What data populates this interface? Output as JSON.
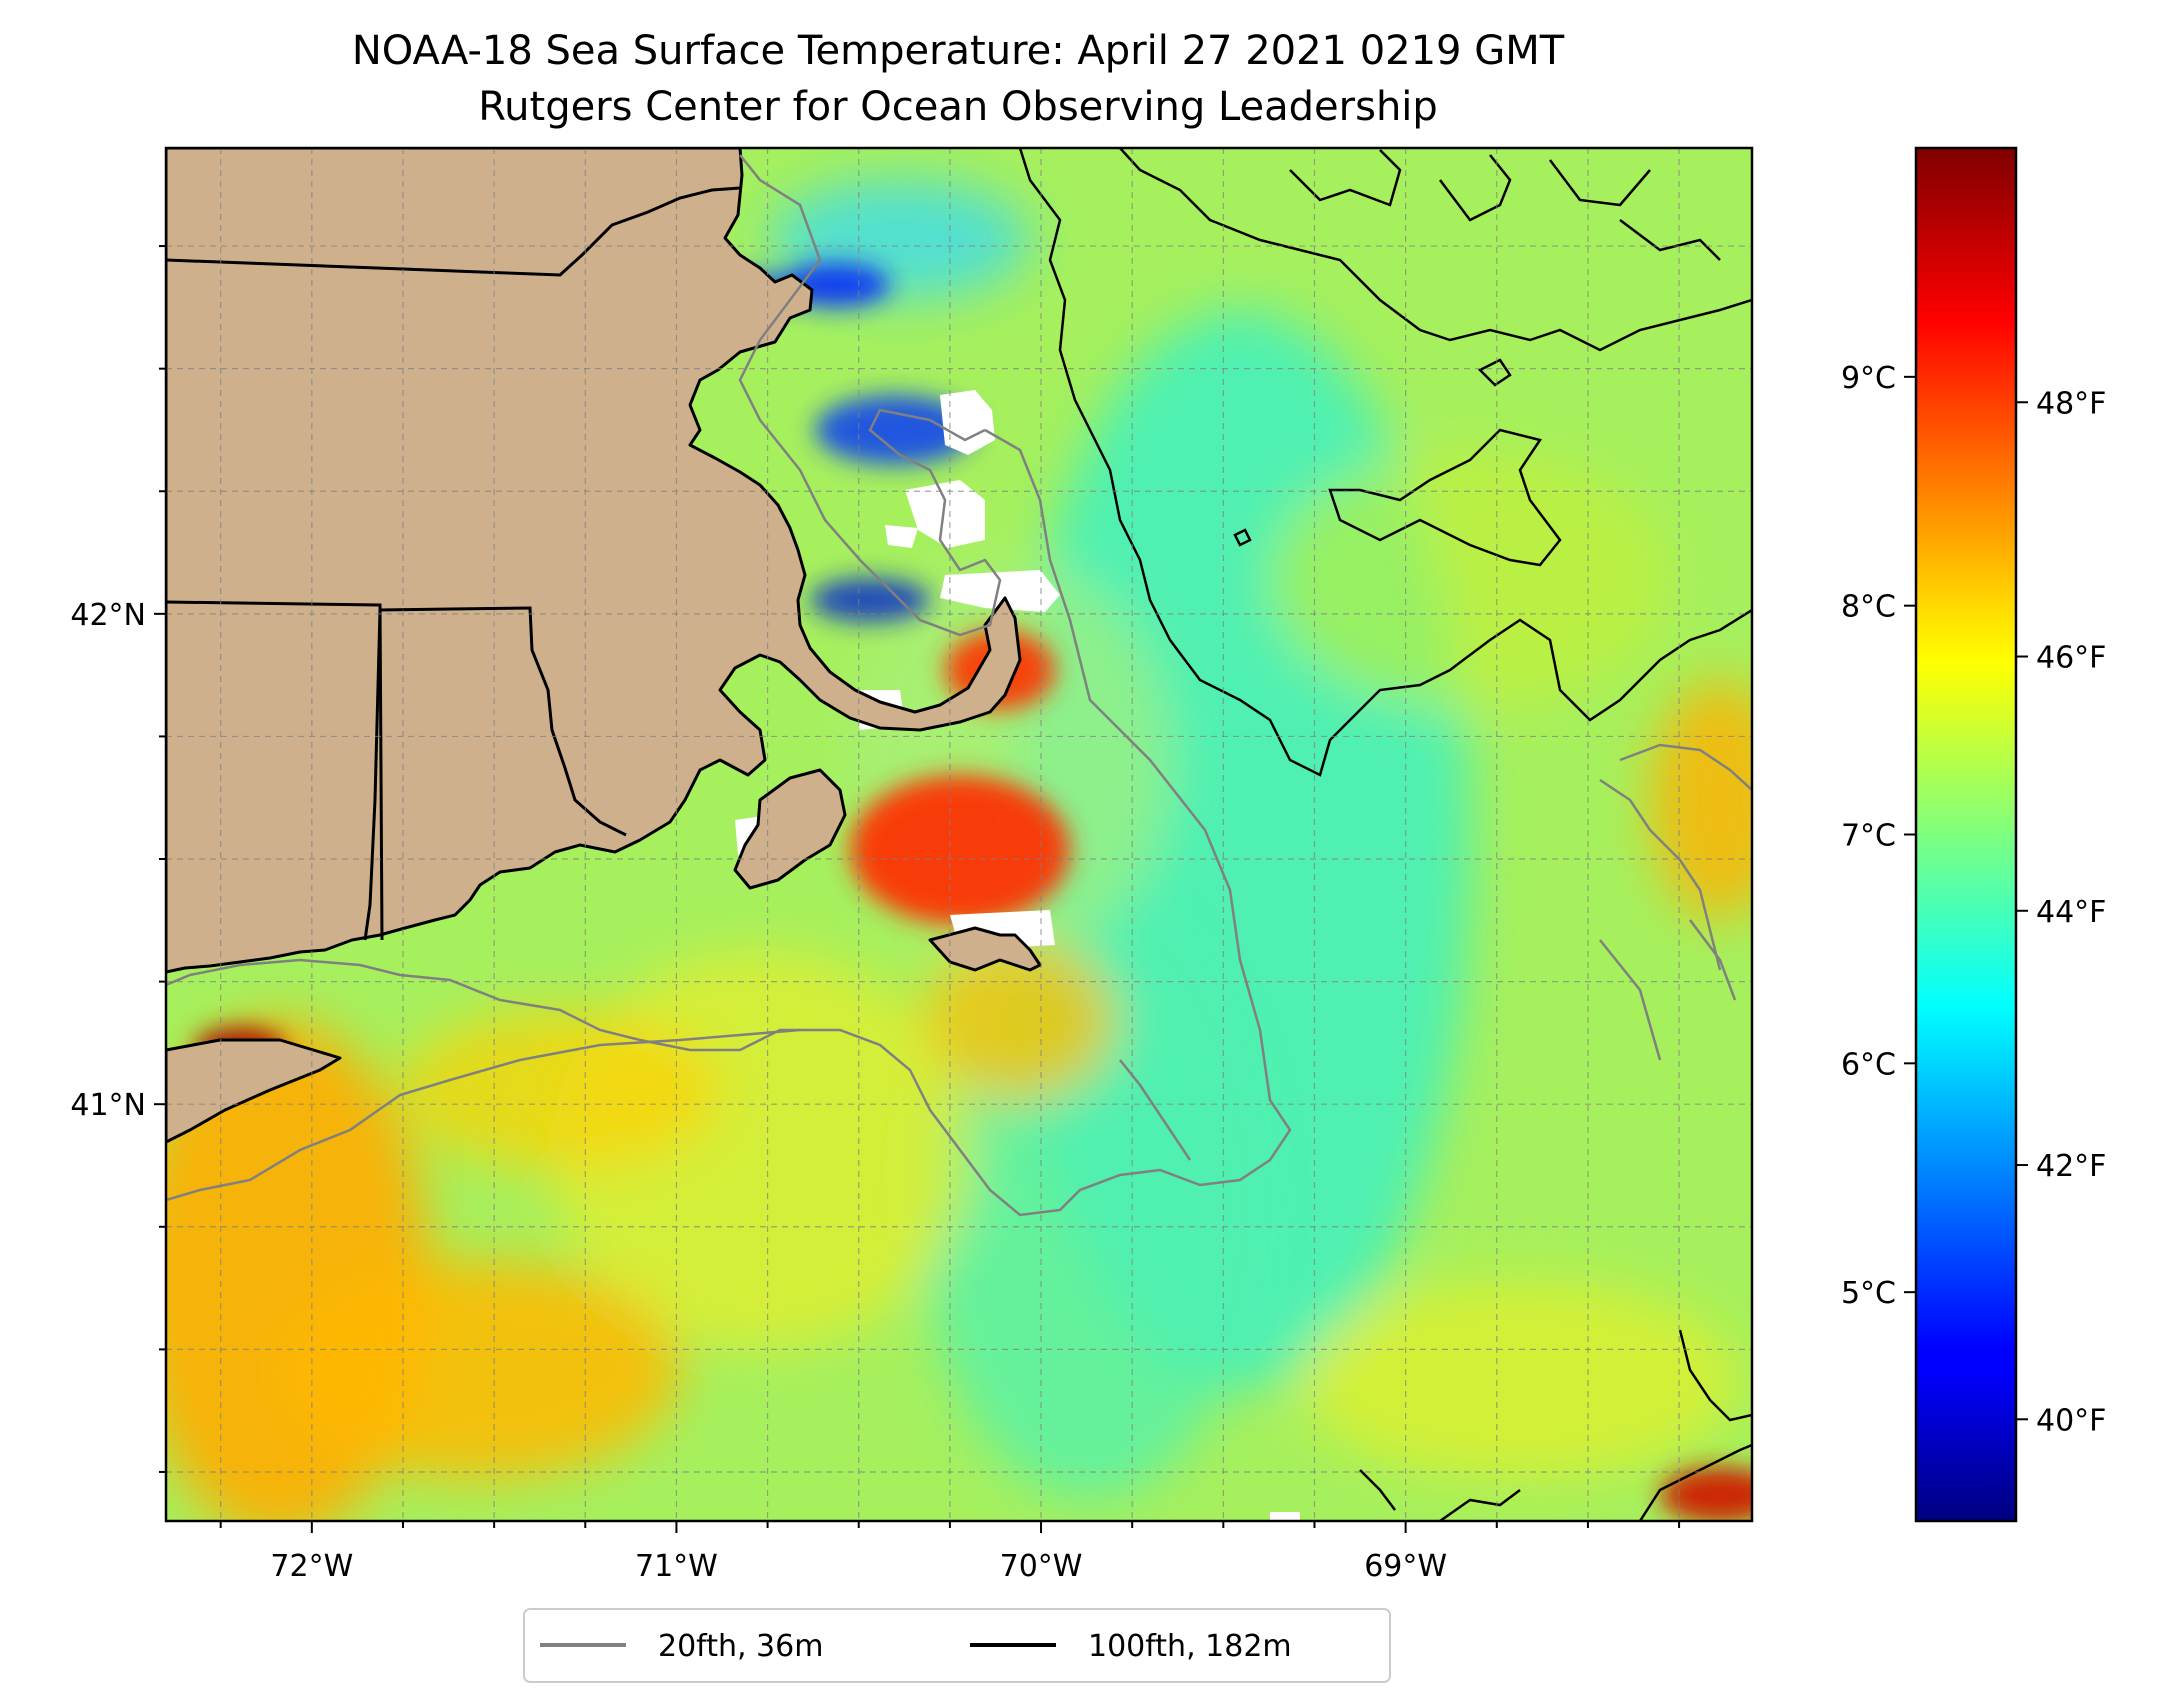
{
  "title": {
    "line1": "NOAA-18 Sea Surface Temperature: April 27 2021 0219 GMT",
    "line2": "Rutgers Center for Ocean Observing Leadership"
  },
  "map": {
    "lon_range": [
      -72.4,
      -68.05
    ],
    "lat_range": [
      40.15,
      42.95
    ],
    "land_color": "#cfb08c",
    "grid": true,
    "grid_style": "dashed",
    "x_ticks": [
      "72°W",
      "71°W",
      "70°W",
      "69°W"
    ],
    "y_ticks": [
      "42°N",
      "41°N"
    ],
    "colormap": "jet",
    "no_data_color": "#ffffff"
  },
  "colorbar": {
    "celsius_ticks": [
      "5°C",
      "6°C",
      "7°C",
      "8°C",
      "9°C"
    ],
    "fahrenheit_ticks": [
      "40°F",
      "42°F",
      "44°F",
      "46°F",
      "48°F"
    ],
    "range_f": [
      39.2,
      50.0
    ]
  },
  "legend": {
    "placement": "bottom-center",
    "items": [
      {
        "label": "20fth, 36m",
        "color": "#808080"
      },
      {
        "label": "100fth, 182m",
        "color": "#000000"
      }
    ]
  }
}
